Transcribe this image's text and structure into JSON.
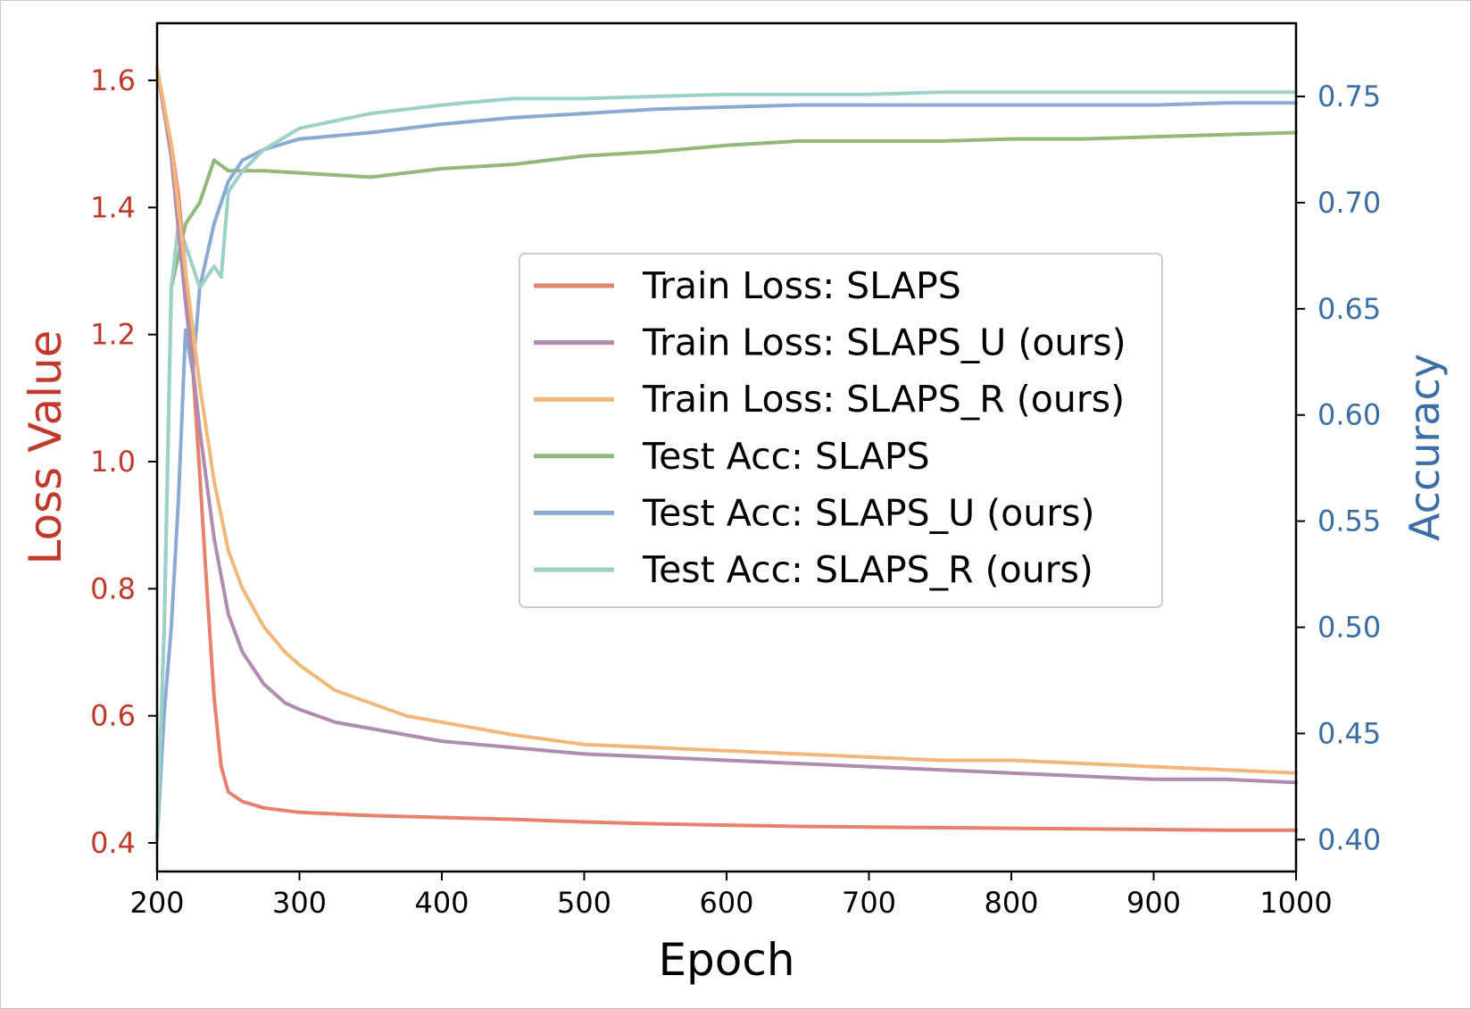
{
  "chart_data": {
    "type": "line",
    "xlabel": "Epoch",
    "ylabel_left": "Loss Value",
    "ylabel_right": "Accuracy",
    "xlim": [
      200,
      1000
    ],
    "ylim_left": [
      0.355,
      1.69
    ],
    "ylim_right": [
      0.385,
      0.7845
    ],
    "x_ticks": [
      200,
      300,
      400,
      500,
      600,
      700,
      800,
      900,
      1000
    ],
    "y_ticks_left": [
      0.4,
      0.6,
      0.8,
      1.0,
      1.2,
      1.4,
      1.6
    ],
    "y_ticks_right": [
      0.4,
      0.45,
      0.5,
      0.55,
      0.6,
      0.65,
      0.7,
      0.75
    ],
    "left_axis_color": "#c0392b",
    "right_axis_color": "#3a6ea5",
    "grid": false,
    "legend_position": "center-right",
    "series": [
      {
        "name": "Train Loss: SLAPS",
        "axis": "left",
        "color": "#e8806e",
        "x": [
          200,
          205,
          210,
          215,
          220,
          225,
          230,
          235,
          240,
          245,
          250,
          260,
          275,
          300,
          350,
          400,
          450,
          500,
          550,
          600,
          650,
          700,
          750,
          800,
          850,
          900,
          950,
          1000
        ],
        "y": [
          1.62,
          1.55,
          1.5,
          1.42,
          1.3,
          1.15,
          0.98,
          0.8,
          0.63,
          0.52,
          0.48,
          0.465,
          0.455,
          0.448,
          0.443,
          0.44,
          0.437,
          0.433,
          0.43,
          0.428,
          0.426,
          0.425,
          0.424,
          0.423,
          0.422,
          0.421,
          0.42,
          0.42
        ]
      },
      {
        "name": "Train Loss: SLAPS_U (ours)",
        "axis": "left",
        "color": "#b08cb0",
        "x": [
          200,
          210,
          220,
          230,
          240,
          250,
          260,
          275,
          290,
          300,
          325,
          350,
          375,
          400,
          450,
          500,
          550,
          600,
          650,
          700,
          750,
          800,
          850,
          900,
          950,
          1000
        ],
        "y": [
          1.62,
          1.48,
          1.25,
          1.05,
          0.88,
          0.76,
          0.7,
          0.65,
          0.62,
          0.61,
          0.59,
          0.58,
          0.57,
          0.56,
          0.55,
          0.54,
          0.535,
          0.53,
          0.525,
          0.52,
          0.515,
          0.51,
          0.505,
          0.5,
          0.5,
          0.495
        ]
      },
      {
        "name": "Train Loss: SLAPS_R (ours)",
        "axis": "left",
        "color": "#f2b87a",
        "x": [
          200,
          210,
          220,
          230,
          240,
          250,
          260,
          275,
          290,
          300,
          325,
          350,
          375,
          400,
          450,
          500,
          550,
          600,
          650,
          700,
          750,
          800,
          850,
          900,
          950,
          1000
        ],
        "y": [
          1.62,
          1.5,
          1.3,
          1.12,
          0.97,
          0.86,
          0.8,
          0.74,
          0.7,
          0.68,
          0.64,
          0.62,
          0.6,
          0.59,
          0.57,
          0.555,
          0.55,
          0.545,
          0.54,
          0.535,
          0.53,
          0.53,
          0.525,
          0.52,
          0.515,
          0.51
        ]
      },
      {
        "name": "Test Acc: SLAPS",
        "axis": "right",
        "color": "#93b97a",
        "x": [
          200,
          205,
          210,
          220,
          230,
          240,
          250,
          275,
          300,
          350,
          400,
          450,
          500,
          550,
          600,
          650,
          700,
          750,
          800,
          850,
          900,
          950,
          1000
        ],
        "y": [
          0.4,
          0.5,
          0.66,
          0.69,
          0.7,
          0.72,
          0.715,
          0.715,
          0.714,
          0.712,
          0.716,
          0.718,
          0.722,
          0.724,
          0.727,
          0.729,
          0.729,
          0.729,
          0.73,
          0.73,
          0.731,
          0.732,
          0.733
        ]
      },
      {
        "name": "Test Acc: SLAPS_U (ours)",
        "axis": "right",
        "color": "#8aaad2",
        "x": [
          200,
          205,
          210,
          215,
          220,
          225,
          230,
          240,
          250,
          260,
          275,
          300,
          350,
          400,
          450,
          500,
          550,
          600,
          650,
          700,
          750,
          800,
          850,
          900,
          950,
          1000
        ],
        "y": [
          0.4,
          0.46,
          0.5,
          0.56,
          0.64,
          0.62,
          0.66,
          0.69,
          0.71,
          0.72,
          0.725,
          0.73,
          0.733,
          0.737,
          0.74,
          0.742,
          0.744,
          0.745,
          0.746,
          0.746,
          0.746,
          0.746,
          0.746,
          0.746,
          0.747,
          0.747
        ]
      },
      {
        "name": "Test Acc: SLAPS_R (ours)",
        "axis": "right",
        "color": "#9dd0c8",
        "x": [
          200,
          205,
          210,
          215,
          220,
          225,
          230,
          240,
          245,
          250,
          260,
          275,
          300,
          350,
          400,
          450,
          500,
          550,
          600,
          650,
          700,
          750,
          800,
          850,
          900,
          950,
          1000
        ],
        "y": [
          0.4,
          0.5,
          0.66,
          0.69,
          0.68,
          0.67,
          0.66,
          0.67,
          0.665,
          0.705,
          0.715,
          0.725,
          0.735,
          0.742,
          0.746,
          0.749,
          0.749,
          0.75,
          0.751,
          0.751,
          0.751,
          0.752,
          0.752,
          0.752,
          0.752,
          0.752,
          0.752
        ]
      }
    ]
  }
}
